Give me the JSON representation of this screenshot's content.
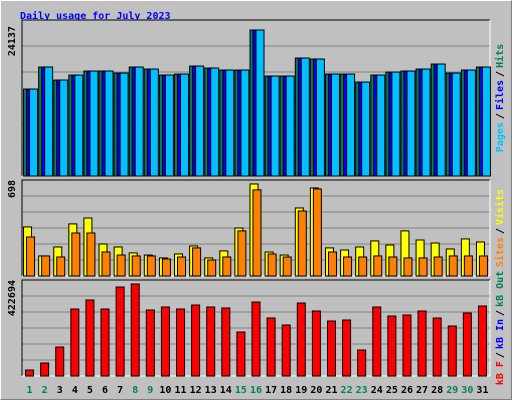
{
  "chart_data": [
    {
      "type": "bar",
      "title": "Daily usage for July 2023",
      "ylim": [
        0,
        25800
      ],
      "yticks": [
        24137
      ],
      "grid": true,
      "legend_separator": "/",
      "series": [
        {
          "name": "Hits",
          "color": "#00805c",
          "values": [
            14381,
            18018,
            15869,
            16695,
            17357,
            17357,
            17026,
            18018,
            17687,
            16695,
            16861,
            18183,
            17852,
            17522,
            17522,
            24137,
            16530,
            16530,
            19505,
            19340,
            16861,
            16861,
            15538,
            16695,
            17191,
            17357,
            17687,
            18514,
            17026,
            17522,
            18018
          ]
        },
        {
          "name": "Files",
          "color": "#0000ff",
          "values": [
            14381,
            18018,
            15869,
            16695,
            17357,
            17357,
            17026,
            18018,
            17687,
            16695,
            16861,
            18183,
            17852,
            17522,
            17522,
            24137,
            16530,
            16530,
            19505,
            19340,
            16861,
            16861,
            15538,
            16695,
            17191,
            17357,
            17687,
            18514,
            17026,
            17522,
            18018
          ]
        },
        {
          "name": "Pages",
          "color": "#00c0ff",
          "values": [
            14381,
            18018,
            15869,
            16695,
            17357,
            17357,
            17026,
            18018,
            17687,
            16695,
            16861,
            18183,
            17852,
            17522,
            17522,
            24137,
            16530,
            16530,
            19505,
            19340,
            16861,
            16861,
            15538,
            16695,
            17191,
            17357,
            17687,
            18514,
            17026,
            17522,
            18018
          ]
        }
      ]
    },
    {
      "type": "bar",
      "ylim": [
        0,
        728
      ],
      "yticks": [
        698
      ],
      "grid": true,
      "legend_separator": "/",
      "series": [
        {
          "name": "Visits",
          "color": "#ffff00",
          "values": [
            372,
            152,
            220,
            395,
            440,
            243,
            220,
            175,
            159,
            137,
            167,
            228,
            137,
            190,
            364,
            698,
            182,
            159,
            516,
            668,
            213,
            197,
            220,
            266,
            235,
            342,
            273,
            250,
            205,
            281,
            258
          ]
        },
        {
          "name": "Sites",
          "color": "#ff8000",
          "values": [
            296,
            152,
            144,
            326,
            326,
            182,
            159,
            152,
            152,
            129,
            144,
            213,
            121,
            144,
            342,
            653,
            167,
            144,
            493,
            660,
            182,
            144,
            144,
            152,
            144,
            137,
            137,
            144,
            152,
            152,
            152
          ]
        }
      ]
    },
    {
      "type": "bar",
      "ylim": [
        0,
        441070
      ],
      "yticks": [
        422694
      ],
      "grid": true,
      "legend_separator": "/",
      "categories": [
        "1",
        "2",
        "3",
        "4",
        "5",
        "6",
        "7",
        "8",
        "9",
        "10",
        "11",
        "12",
        "13",
        "14",
        "15",
        "16",
        "17",
        "18",
        "19",
        "20",
        "21",
        "22",
        "23",
        "24",
        "25",
        "26",
        "27",
        "28",
        "29",
        "30",
        "31"
      ],
      "x_label_colors": [
        "#00805c",
        "#00805c",
        "#000000",
        "#000000",
        "#000000",
        "#000000",
        "#000000",
        "#00805c",
        "#00805c",
        "#000000",
        "#000000",
        "#000000",
        "#000000",
        "#000000",
        "#00805c",
        "#00805c",
        "#000000",
        "#000000",
        "#000000",
        "#000000",
        "#000000",
        "#00805c",
        "#00805c",
        "#000000",
        "#000000",
        "#000000",
        "#000000",
        "#000000",
        "#00805c",
        "#00805c",
        "#000000"
      ],
      "series": [
        {
          "name": "kB F",
          "color": "#ff0000",
          "values": [
            27567,
            59729,
            133241,
            307832,
            349182,
            307832,
            408911,
            422694,
            303237,
            317021,
            307832,
            326210,
            317021,
            312426,
            202158,
            339993,
            266481,
            234320,
            335399,
            298643,
            252698,
            257292,
            119457,
            317021,
            275670,
            280265,
            298643,
            266481,
            229725,
            289454,
            321615
          ]
        }
      ],
      "extra_legend": [
        {
          "name": "kB In",
          "color": "#0000ff"
        },
        {
          "name": "kB Out",
          "color": "#00805c"
        }
      ]
    }
  ]
}
